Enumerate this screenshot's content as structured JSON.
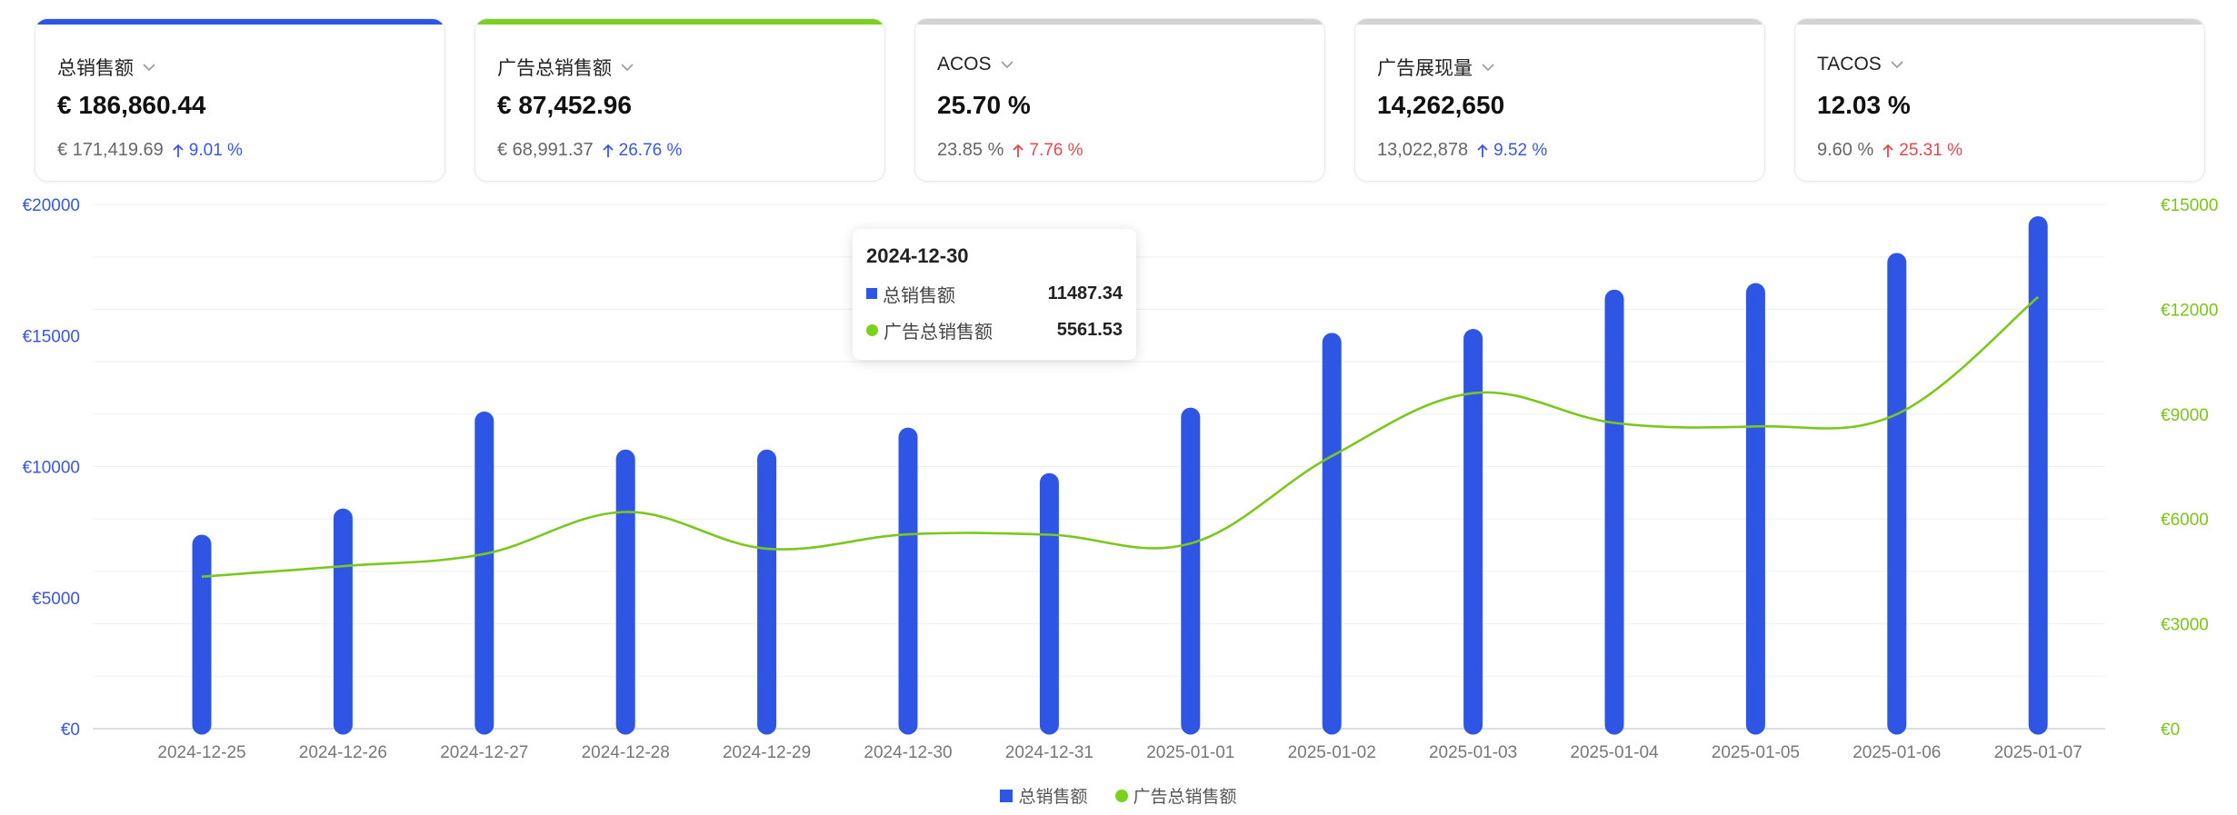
{
  "kpi_cards": [
    {
      "title": "总销售额",
      "value": "€ 186,860.44",
      "previous": "€ 171,419.69",
      "change": "9.01 %",
      "direction": "up",
      "change_color": "#3b57e0",
      "accent_color": "#2f55e4",
      "selected": true
    },
    {
      "title": "广告总销售额",
      "value": "€ 87,452.96",
      "previous": "€ 68,991.37",
      "change": "26.76 %",
      "direction": "up",
      "change_color": "#3b57e0",
      "accent_color": "#7ad11f",
      "selected": true
    },
    {
      "title": "ACOS",
      "value": "25.70 %",
      "previous": "23.85 %",
      "change": "7.76 %",
      "direction": "up",
      "change_color": "#e0474f",
      "accent_color": "#d3d3d3",
      "selected": false
    },
    {
      "title": "广告展现量",
      "value": "14,262,650",
      "previous": "13,022,878",
      "change": "9.52 %",
      "direction": "up",
      "change_color": "#3b57e0",
      "accent_color": "#d3d3d3",
      "selected": false
    },
    {
      "title": "TACOS",
      "value": "12.03 %",
      "previous": "9.60 %",
      "change": "25.31 %",
      "direction": "up",
      "change_color": "#e0474f",
      "accent_color": "#d3d3d3",
      "selected": false
    }
  ],
  "chart_data": {
    "type": "bar",
    "categories": [
      "2024-12-25",
      "2024-12-26",
      "2024-12-27",
      "2024-12-28",
      "2024-12-29",
      "2024-12-30",
      "2024-12-31",
      "2025-01-01",
      "2025-01-02",
      "2025-01-03",
      "2025-01-04",
      "2025-01-05",
      "2025-01-06",
      "2025-01-07"
    ],
    "y_left": {
      "ticks": [
        "€0",
        "€5000",
        "€10000",
        "€15000",
        "€20000"
      ],
      "range": [
        0,
        20000
      ],
      "color": "#3a57d8"
    },
    "y_right": {
      "ticks": [
        "€0",
        "€3000",
        "€6000",
        "€9000",
        "€12000",
        "€15000"
      ],
      "range": [
        0,
        15000
      ],
      "color": "#7cc417"
    },
    "grid": true,
    "series": [
      {
        "name": "总销售额",
        "type": "bar",
        "axis": "left",
        "color": "#2f55e4",
        "values": [
          7400,
          8400,
          12100,
          10650,
          10650,
          11487.34,
          9750,
          12250,
          15100,
          15250,
          16750,
          17000,
          18150,
          19550
        ]
      },
      {
        "name": "广告总销售额",
        "type": "line",
        "axis": "right",
        "smooth": true,
        "color": "#7cc71f",
        "values": [
          4350,
          4650,
          5000,
          6200,
          5150,
          5561.53,
          5550,
          5300,
          7800,
          9600,
          8750,
          8650,
          9000,
          12350
        ]
      }
    ],
    "tooltip": {
      "date": "2024-12-30",
      "rows": [
        {
          "label": "总销售额",
          "value": "11487.34",
          "marker": "square"
        },
        {
          "label": "广告总销售额",
          "value": "5561.53",
          "marker": "circle"
        }
      ]
    },
    "legend": {
      "position": "bottom-center",
      "items": [
        "总销售额",
        "广告总销售额"
      ]
    }
  }
}
